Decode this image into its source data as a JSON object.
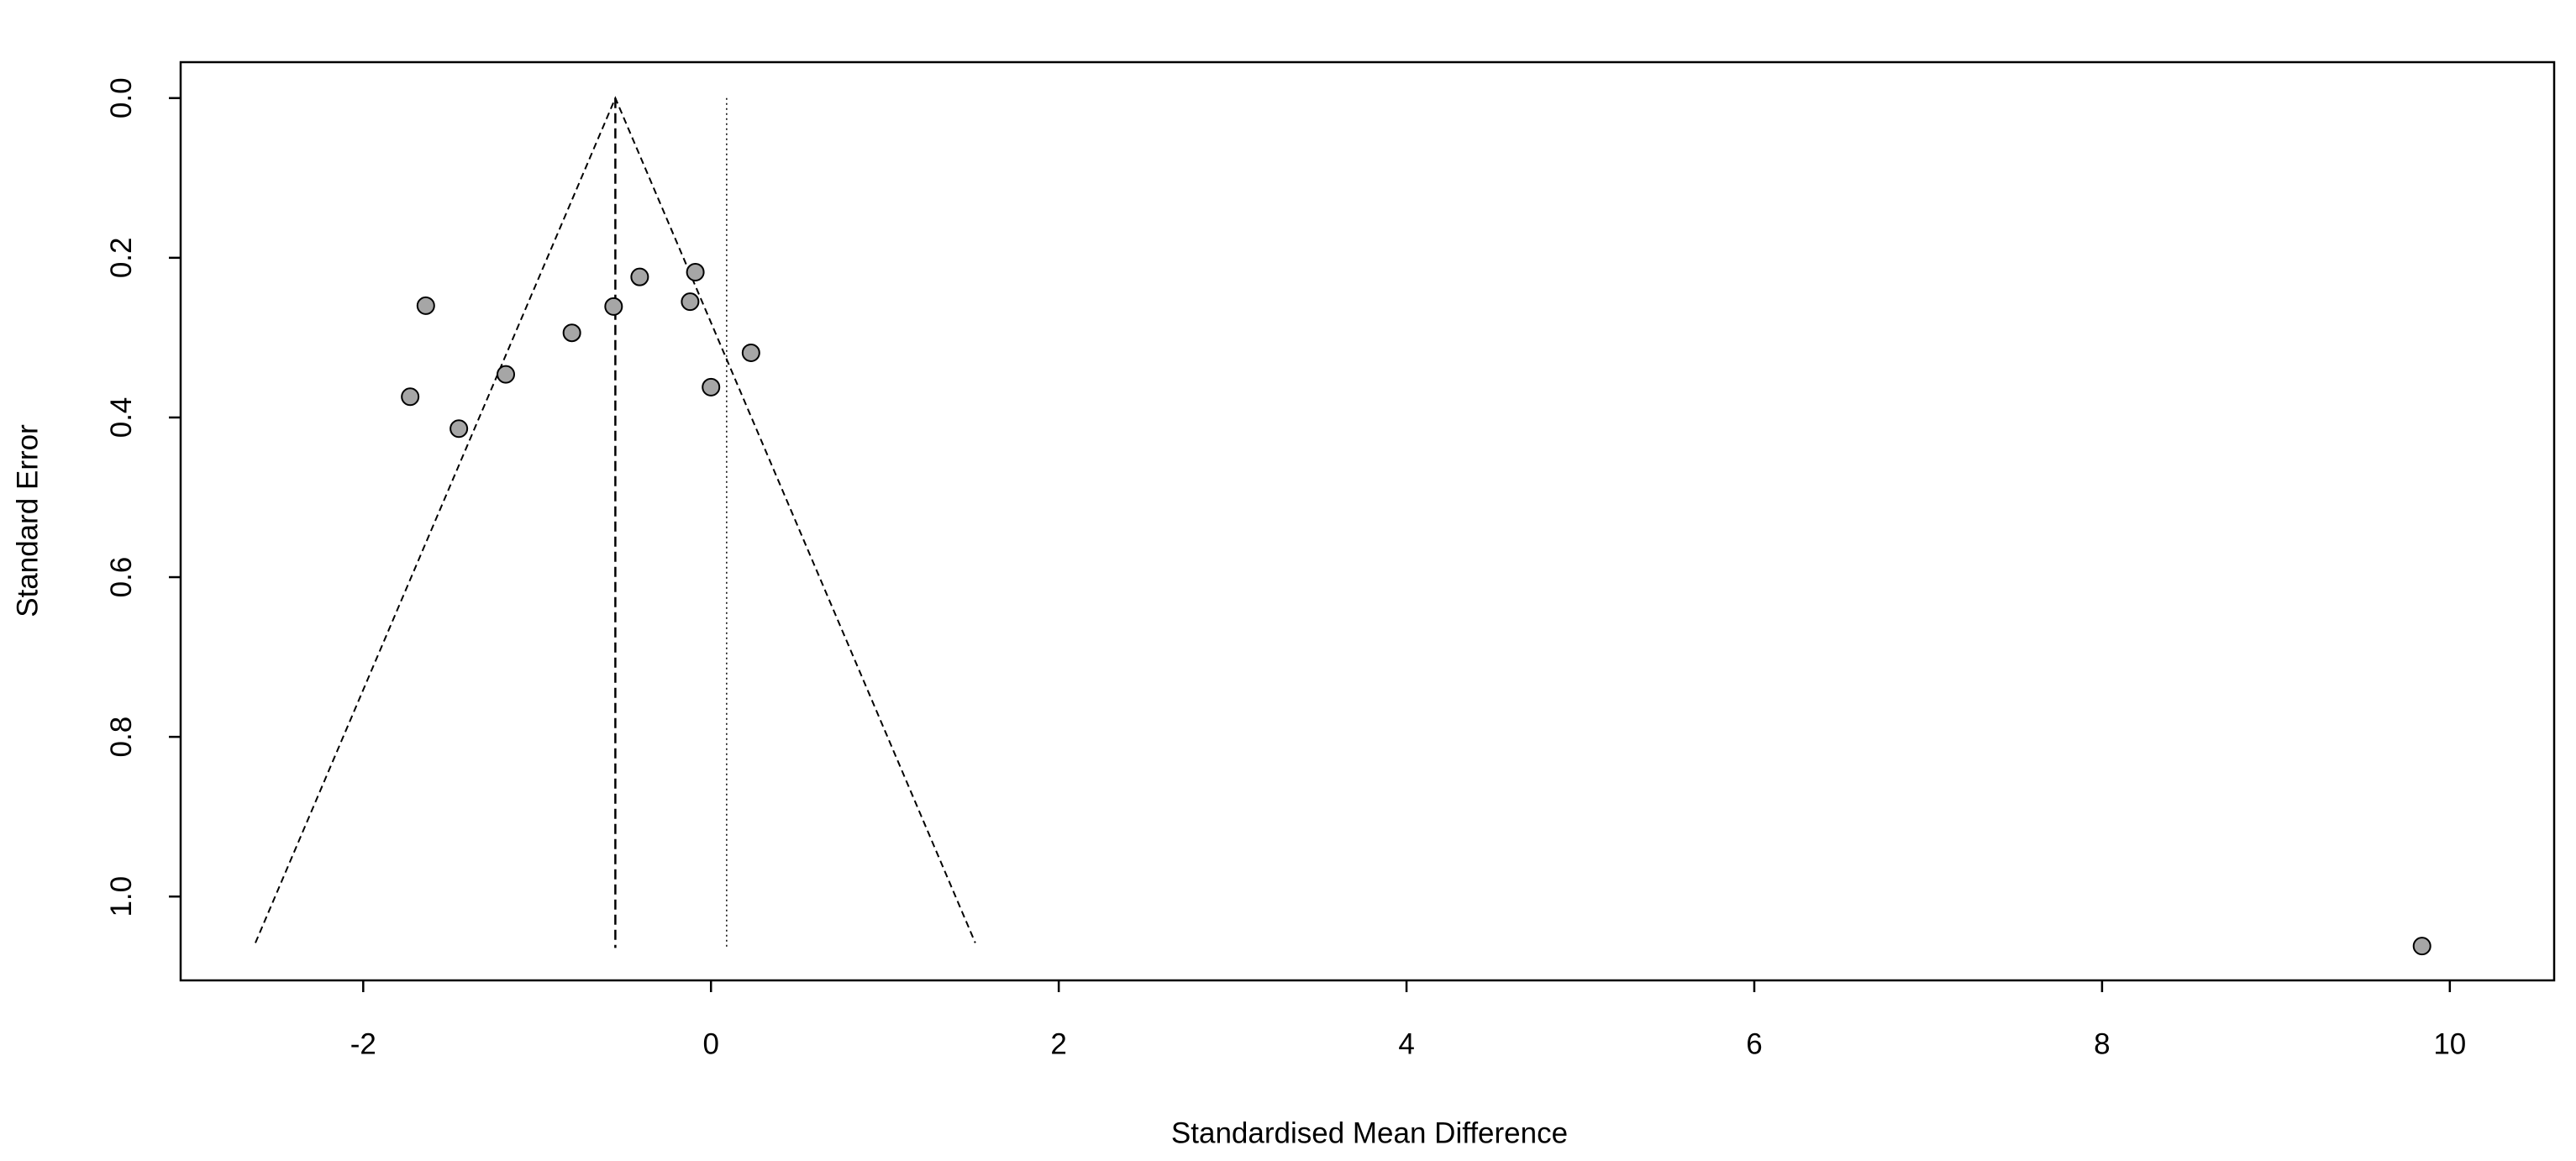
{
  "chart_data": {
    "type": "scatter",
    "xlabel": "Standardised Mean Difference",
    "ylabel": "Standard Error",
    "x": [
      -1.64,
      -1.73,
      -1.45,
      -1.18,
      -0.8,
      -0.56,
      -0.41,
      -0.09,
      -0.12,
      0.23,
      0.0,
      9.84
    ],
    "values": [
      0.26,
      0.374,
      0.414,
      0.346,
      0.294,
      0.261,
      0.224,
      0.218,
      0.255,
      0.319,
      0.362,
      1.062
    ],
    "color": "#a6a6a6",
    "xlim": [
      -3.05,
      10.6
    ],
    "ylim": [
      1.105,
      -0.045
    ],
    "xticks": [
      -2,
      0,
      2,
      4,
      6,
      8,
      10
    ],
    "yticks": [
      {
        "value": 0,
        "label": "0.0"
      },
      0.2,
      0.4,
      0.6,
      0.8,
      {
        "value": 1,
        "label": "1.0"
      }
    ],
    "funnel": {
      "apex_x": -0.55,
      "apex_y": 0,
      "bottom_y": 1.058,
      "bottom_left_x": -2.62,
      "bottom_right_x": 1.52
    },
    "reflines": [
      {
        "x": -0.55,
        "style": "dashed"
      },
      {
        "x": 0.09,
        "style": "dotted"
      }
    ]
  }
}
